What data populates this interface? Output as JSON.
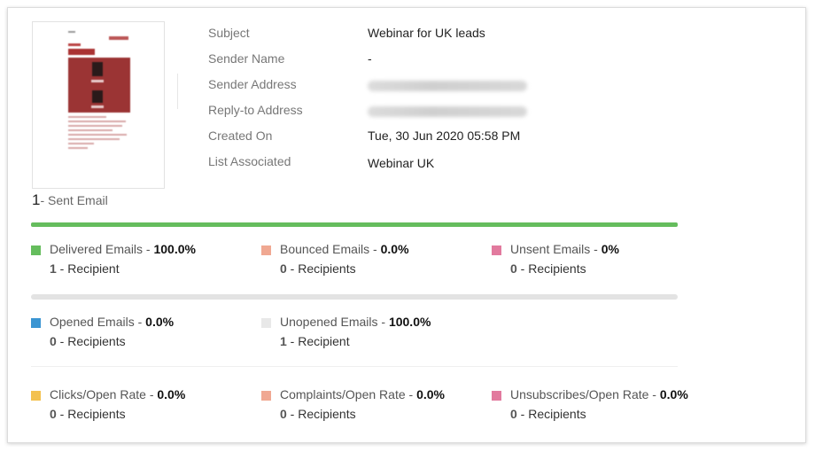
{
  "sent": {
    "count": "1",
    "label": "- Sent Email"
  },
  "meta": [
    {
      "label": "Subject",
      "value": "Webinar for UK leads",
      "blurred": false
    },
    {
      "label": "Sender Name",
      "value": "-",
      "blurred": false
    },
    {
      "label": "Sender Address",
      "value": "",
      "blurred": true
    },
    {
      "label": "Reply-to Address",
      "value": "",
      "blurred": true
    },
    {
      "label": "Created On",
      "value": "Tue, 30 Jun 2020 05:58 PM",
      "blurred": false
    },
    {
      "label": "List Associated",
      "value": "Webinar UK",
      "blurred": false
    }
  ],
  "delivery_progress_pct": 100,
  "stats": {
    "delivered": {
      "label": "Delivered Emails - ",
      "pct": "100.0%",
      "count": "1",
      "unit": " - Recipient",
      "color": "#65bd5d"
    },
    "bounced": {
      "label": "Bounced Emails - ",
      "pct": "0.0%",
      "count": "0",
      "unit": " - Recipients",
      "color": "#f0a892"
    },
    "unsent": {
      "label": "Unsent Emails - ",
      "pct": "0%",
      "count": "0",
      "unit": " - Recipients",
      "color": "#e27a9e"
    },
    "opened": {
      "label": "Opened Emails - ",
      "pct": "0.0%",
      "count": "0",
      "unit": " - Recipients",
      "color": "#3b95d2"
    },
    "unopened": {
      "label": "Unopened Emails - ",
      "pct": "100.0%",
      "count": "1",
      "unit": " - Recipient",
      "color": "#e8e8e8"
    },
    "clicks": {
      "label": "Clicks/Open Rate - ",
      "pct": "0.0%",
      "count": "0",
      "unit": " - Recipients",
      "color": "#f3c14f"
    },
    "complaints": {
      "label": "Complaints/Open Rate - ",
      "pct": "0.0%",
      "count": "0",
      "unit": " - Recipients",
      "color": "#f0a892"
    },
    "unsubscribes": {
      "label": "Unsubscribes/Open Rate - ",
      "pct": "0.0%",
      "count": "0",
      "unit": " - Recipients",
      "color": "#e27a9e"
    }
  }
}
